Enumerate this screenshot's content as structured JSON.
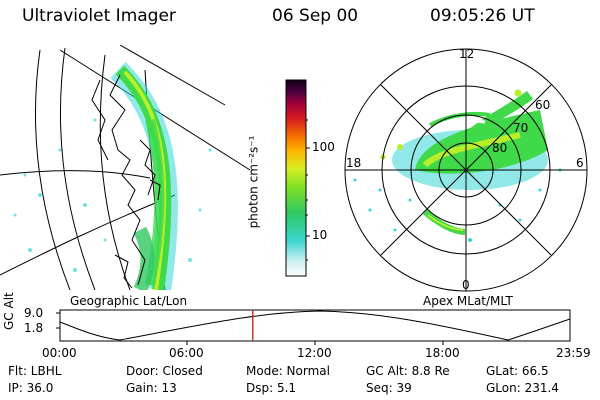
{
  "header": {
    "instrument": "Ultraviolet Imager",
    "date": "06 Sep 00",
    "time": "09:05:26 UT"
  },
  "colorbar": {
    "label": "photon cm⁻²s⁻¹",
    "ticks": [
      "100",
      "10"
    ]
  },
  "panels": {
    "left_label": "Geographic Lat/Lon",
    "right_label": "Apex MLat/MLT"
  },
  "polar_plot": {
    "mlt_labels": [
      "12",
      "18",
      "6",
      "0"
    ],
    "mlat_labels": [
      "60",
      "70",
      "80"
    ]
  },
  "altitude_plot": {
    "ylabel": "GC Alt",
    "yticks": [
      "9.0",
      "1.8"
    ],
    "xticks": [
      "00:00",
      "06:00",
      "12:00",
      "18:00",
      "23:59"
    ],
    "current_marker_value": 0.378
  },
  "info": {
    "flt": "Flt: LBHL",
    "door": "Door: Closed",
    "mode": "Mode: Normal",
    "gc_alt": "GC Alt: 8.8 Re",
    "glat": "GLat:   66.5",
    "ip": "IP: 36.0",
    "gain": "Gain: 13",
    "dsp": "Dsp:     5.1",
    "seq": "Seq: 39",
    "glon": "GLon: 231.4"
  },
  "colors": {
    "aurora_green": "#3fd94a",
    "aurora_lime": "#b8ef2a",
    "aurora_cyan": "#34d6d6",
    "marker_red": "#c0392b"
  }
}
